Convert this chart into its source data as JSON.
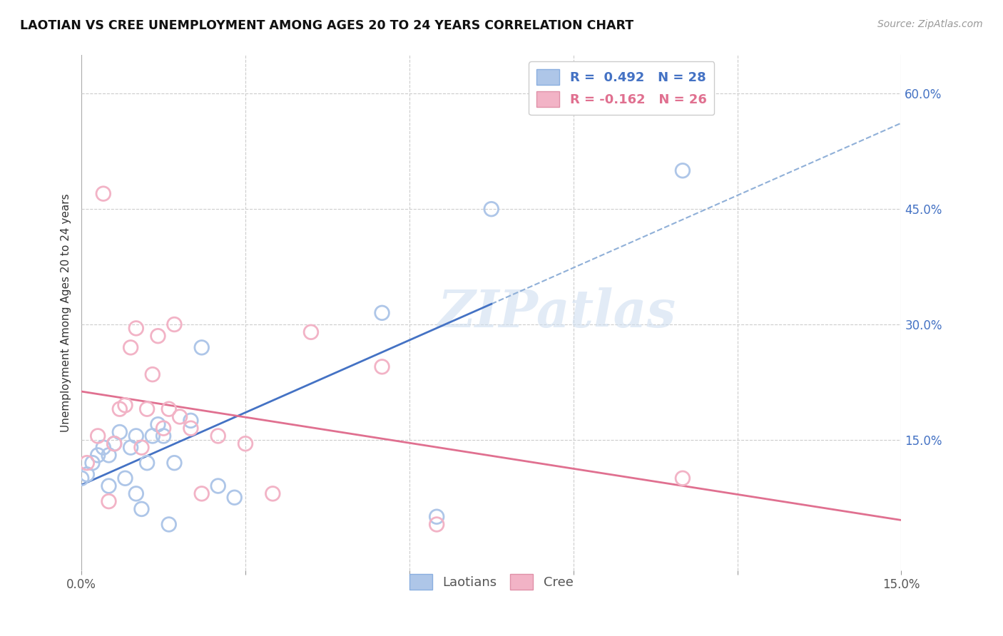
{
  "title": "LAOTIAN VS CREE UNEMPLOYMENT AMONG AGES 20 TO 24 YEARS CORRELATION CHART",
  "source": "Source: ZipAtlas.com",
  "ylabel": "Unemployment Among Ages 20 to 24 years",
  "xlim": [
    0.0,
    0.15
  ],
  "ylim": [
    -0.02,
    0.65
  ],
  "laotian_R": 0.492,
  "laotian_N": 28,
  "cree_R": -0.162,
  "cree_N": 26,
  "laotian_color": "#aec6e8",
  "cree_color": "#f2b3c6",
  "laotian_line_color": "#4472c4",
  "cree_line_color": "#e07090",
  "dashed_line_color": "#90b0d8",
  "background_color": "#ffffff",
  "watermark": "ZIPatlas",
  "laotian_x": [
    0.0,
    0.001,
    0.002,
    0.003,
    0.004,
    0.005,
    0.005,
    0.006,
    0.007,
    0.008,
    0.009,
    0.01,
    0.01,
    0.011,
    0.012,
    0.013,
    0.014,
    0.015,
    0.016,
    0.017,
    0.02,
    0.022,
    0.025,
    0.028,
    0.055,
    0.065,
    0.075,
    0.11
  ],
  "laotian_y": [
    0.1,
    0.105,
    0.12,
    0.13,
    0.14,
    0.09,
    0.13,
    0.145,
    0.16,
    0.1,
    0.14,
    0.08,
    0.155,
    0.06,
    0.12,
    0.155,
    0.17,
    0.155,
    0.04,
    0.12,
    0.175,
    0.27,
    0.09,
    0.075,
    0.315,
    0.05,
    0.45,
    0.5
  ],
  "cree_x": [
    0.001,
    0.003,
    0.004,
    0.005,
    0.006,
    0.007,
    0.008,
    0.009,
    0.01,
    0.011,
    0.012,
    0.013,
    0.014,
    0.015,
    0.016,
    0.017,
    0.018,
    0.02,
    0.022,
    0.025,
    0.03,
    0.035,
    0.042,
    0.055,
    0.065,
    0.11
  ],
  "cree_y": [
    0.12,
    0.155,
    0.47,
    0.07,
    0.145,
    0.19,
    0.195,
    0.27,
    0.295,
    0.14,
    0.19,
    0.235,
    0.285,
    0.165,
    0.19,
    0.3,
    0.18,
    0.165,
    0.08,
    0.155,
    0.145,
    0.08,
    0.29,
    0.245,
    0.04,
    0.1
  ],
  "figsize": [
    14.06,
    8.92
  ],
  "dpi": 100
}
